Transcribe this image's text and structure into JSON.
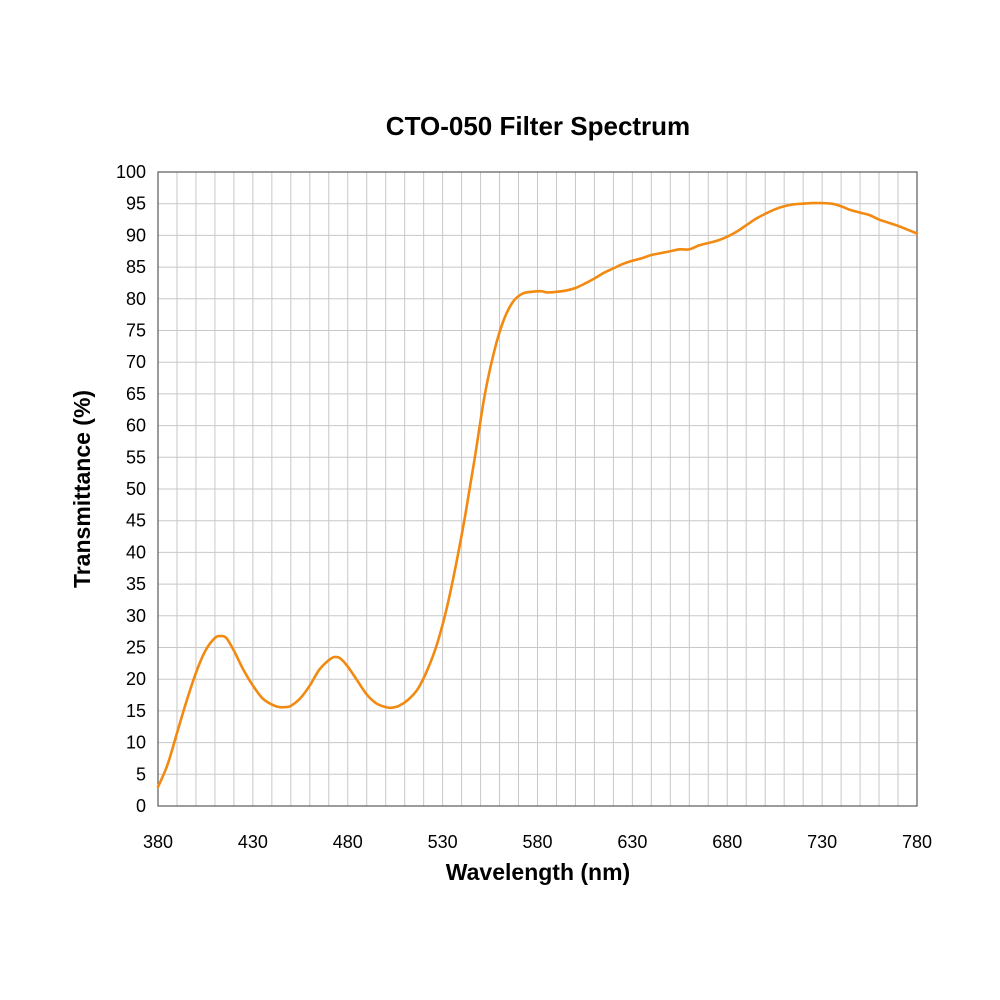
{
  "chart_data": {
    "type": "line",
    "title": "CTO-050 Filter Spectrum",
    "xlabel": "Wavelength (nm)",
    "ylabel": "Transmittance (%)",
    "xlim": [
      380,
      780
    ],
    "ylim": [
      0,
      100
    ],
    "x_ticks": [
      380,
      430,
      480,
      530,
      580,
      630,
      680,
      730,
      780
    ],
    "x_tick_labels": [
      "380",
      "430",
      "480",
      "530",
      "580",
      "630",
      "680",
      "730",
      "780"
    ],
    "y_ticks": [
      0,
      5,
      10,
      15,
      20,
      25,
      30,
      35,
      40,
      45,
      50,
      55,
      60,
      65,
      70,
      75,
      80,
      85,
      90,
      95,
      100
    ],
    "y_tick_labels": [
      "0",
      "5",
      "10",
      "15",
      "20",
      "25",
      "30",
      "35",
      "40",
      "45",
      "50",
      "55",
      "60",
      "65",
      "70",
      "75",
      "80",
      "85",
      "90",
      "95",
      "100"
    ],
    "x_minor_step": 10,
    "grid": true,
    "legend": "none",
    "series": [
      {
        "color": "#f28a12",
        "points": [
          [
            380,
            3
          ],
          [
            385,
            6.5
          ],
          [
            390,
            11.5
          ],
          [
            395,
            16.5
          ],
          [
            400,
            21
          ],
          [
            405,
            24.5
          ],
          [
            410,
            26.5
          ],
          [
            413,
            26.8
          ],
          [
            416,
            26.5
          ],
          [
            420,
            24.5
          ],
          [
            425,
            21.5
          ],
          [
            430,
            19
          ],
          [
            435,
            17
          ],
          [
            440,
            16
          ],
          [
            444,
            15.6
          ],
          [
            447,
            15.6
          ],
          [
            450,
            15.8
          ],
          [
            455,
            17
          ],
          [
            460,
            19
          ],
          [
            465,
            21.5
          ],
          [
            470,
            23
          ],
          [
            473,
            23.5
          ],
          [
            476,
            23.3
          ],
          [
            480,
            22
          ],
          [
            485,
            19.8
          ],
          [
            490,
            17.6
          ],
          [
            495,
            16.2
          ],
          [
            500,
            15.6
          ],
          [
            503,
            15.5
          ],
          [
            507,
            15.8
          ],
          [
            512,
            16.8
          ],
          [
            517,
            18.5
          ],
          [
            522,
            21.5
          ],
          [
            527,
            25.5
          ],
          [
            532,
            31
          ],
          [
            537,
            38
          ],
          [
            542,
            46
          ],
          [
            547,
            55
          ],
          [
            552,
            64.5
          ],
          [
            557,
            71.5
          ],
          [
            562,
            76.5
          ],
          [
            567,
            79.5
          ],
          [
            572,
            80.8
          ],
          [
            577,
            81.1
          ],
          [
            582,
            81.2
          ],
          [
            585,
            81.0
          ],
          [
            590,
            81.1
          ],
          [
            595,
            81.3
          ],
          [
            600,
            81.7
          ],
          [
            605,
            82.4
          ],
          [
            610,
            83.2
          ],
          [
            615,
            84.1
          ],
          [
            620,
            84.8
          ],
          [
            625,
            85.5
          ],
          [
            630,
            86.0
          ],
          [
            635,
            86.4
          ],
          [
            640,
            86.9
          ],
          [
            645,
            87.2
          ],
          [
            650,
            87.5
          ],
          [
            655,
            87.8
          ],
          [
            660,
            87.8
          ],
          [
            665,
            88.4
          ],
          [
            670,
            88.8
          ],
          [
            675,
            89.2
          ],
          [
            680,
            89.8
          ],
          [
            685,
            90.6
          ],
          [
            690,
            91.6
          ],
          [
            695,
            92.6
          ],
          [
            700,
            93.4
          ],
          [
            705,
            94.1
          ],
          [
            710,
            94.6
          ],
          [
            715,
            94.9
          ],
          [
            720,
            95.0
          ],
          [
            725,
            95.1
          ],
          [
            730,
            95.1
          ],
          [
            735,
            95.0
          ],
          [
            740,
            94.6
          ],
          [
            745,
            94.0
          ],
          [
            750,
            93.6
          ],
          [
            755,
            93.2
          ],
          [
            760,
            92.5
          ],
          [
            765,
            92.0
          ],
          [
            770,
            91.5
          ],
          [
            775,
            90.9
          ],
          [
            780,
            90.3
          ]
        ]
      }
    ]
  }
}
